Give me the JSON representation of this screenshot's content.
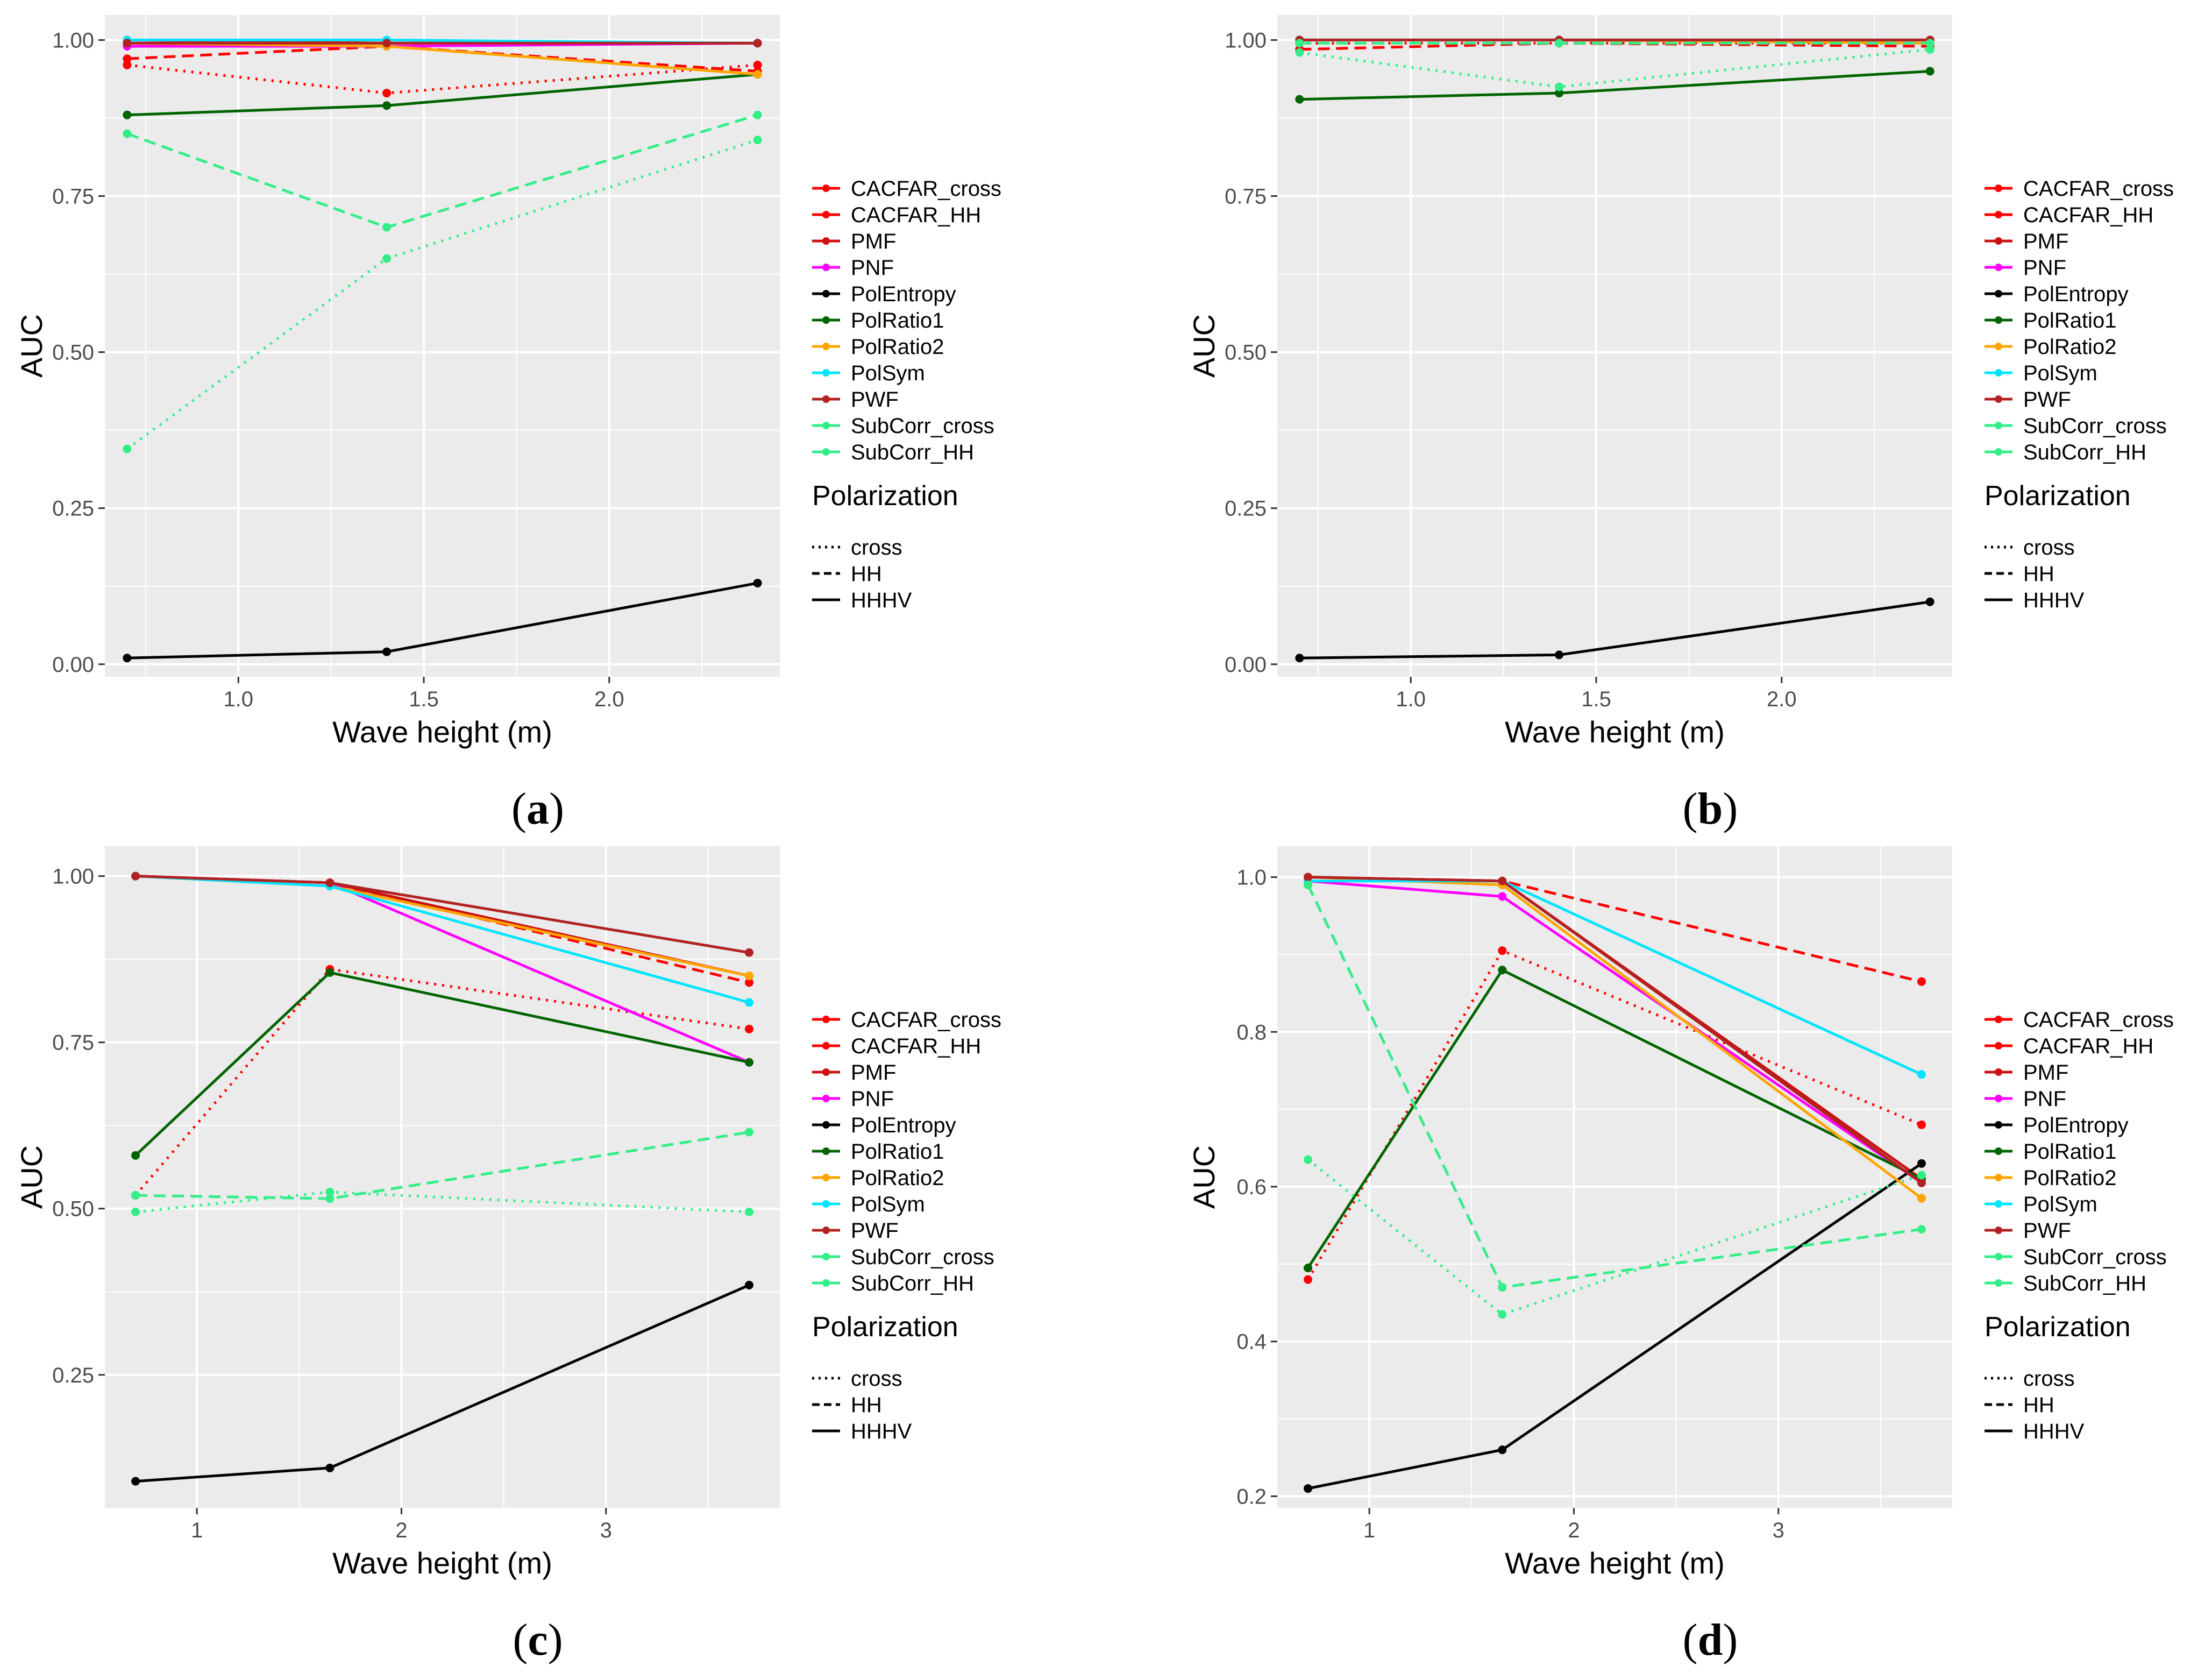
{
  "figure": {
    "legend_title": "Polarization",
    "line_types": [
      {
        "key": "cross",
        "label": "cross",
        "dash": "dotted"
      },
      {
        "key": "HH",
        "label": "HH",
        "dash": "dashed"
      },
      {
        "key": "HHHV",
        "label": "HHHV",
        "dash": "solid"
      }
    ],
    "colors": {
      "CACFAR_cross": "#ff0000",
      "CACFAR_HH": "#ff0000",
      "PMF": "#cc1111",
      "PNF": "#ff00ff",
      "PolEntropy": "#000000",
      "PolRatio1": "#006400",
      "PolRatio2": "#ffa500",
      "PolSym": "#00e5ff",
      "PWF": "#b22222",
      "SubCorr_cross": "#33ee88",
      "SubCorr_HH": "#33ee88",
      "panel_bg": "#ebebeb",
      "grid": "#ffffff"
    }
  },
  "chart_data": [
    {
      "type": "line",
      "panel": "a",
      "label_prefix": "(",
      "label_letter": "a",
      "label_suffix": ")",
      "xlabel": "Wave height (m)",
      "ylabel": "AUC",
      "xlim": [
        0.64,
        2.46
      ],
      "ylim": [
        -0.02,
        1.04
      ],
      "xticks": [
        {
          "v": 1.0,
          "t": "1.0"
        },
        {
          "v": 1.5,
          "t": "1.5"
        },
        {
          "v": 2.0,
          "t": "2.0"
        }
      ],
      "yticks": [
        {
          "v": 0.0,
          "t": "0.00"
        },
        {
          "v": 0.25,
          "t": "0.25"
        },
        {
          "v": 0.5,
          "t": "0.50"
        },
        {
          "v": 0.75,
          "t": "0.75"
        },
        {
          "v": 1.0,
          "t": "1.00"
        }
      ],
      "x": [
        0.7,
        1.4,
        2.4
      ],
      "series": [
        {
          "name": "CACFAR_cross",
          "dash": "cross",
          "values": [
            0.96,
            0.915,
            0.96
          ]
        },
        {
          "name": "CACFAR_HH",
          "dash": "HH",
          "values": [
            0.97,
            0.99,
            0.95
          ]
        },
        {
          "name": "PMF",
          "dash": "HHHV",
          "values": [
            1.0,
            0.995,
            0.995
          ]
        },
        {
          "name": "PNF",
          "dash": "HHHV",
          "values": [
            0.99,
            0.99,
            0.995
          ]
        },
        {
          "name": "PolEntropy",
          "dash": "HHHV",
          "values": [
            0.01,
            0.02,
            0.13
          ]
        },
        {
          "name": "PolRatio1",
          "dash": "HHHV",
          "values": [
            0.88,
            0.895,
            0.945
          ]
        },
        {
          "name": "PolRatio2",
          "dash": "HHHV",
          "values": [
            0.995,
            0.99,
            0.945
          ]
        },
        {
          "name": "PolSym",
          "dash": "HHHV",
          "values": [
            1.0,
            1.0,
            0.995
          ]
        },
        {
          "name": "PWF",
          "dash": "HHHV",
          "values": [
            0.995,
            0.995,
            0.995
          ]
        },
        {
          "name": "SubCorr_cross",
          "dash": "cross",
          "values": [
            0.345,
            0.65,
            0.84
          ]
        },
        {
          "name": "SubCorr_HH",
          "dash": "HH",
          "values": [
            0.85,
            0.7,
            0.88
          ]
        }
      ]
    },
    {
      "type": "line",
      "panel": "b",
      "label_prefix": "(",
      "label_letter": "b",
      "label_suffix": ")",
      "xlabel": "Wave height (m)",
      "ylabel": "AUC",
      "xlim": [
        0.64,
        2.46
      ],
      "ylim": [
        -0.02,
        1.04
      ],
      "xticks": [
        {
          "v": 1.0,
          "t": "1.0"
        },
        {
          "v": 1.5,
          "t": "1.5"
        },
        {
          "v": 2.0,
          "t": "2.0"
        }
      ],
      "yticks": [
        {
          "v": 0.0,
          "t": "0.00"
        },
        {
          "v": 0.25,
          "t": "0.25"
        },
        {
          "v": 0.5,
          "t": "0.50"
        },
        {
          "v": 0.75,
          "t": "0.75"
        },
        {
          "v": 1.0,
          "t": "1.00"
        }
      ],
      "x": [
        0.7,
        1.4,
        2.4
      ],
      "series": [
        {
          "name": "CACFAR_cross",
          "dash": "cross",
          "values": [
            0.995,
            0.995,
            0.995
          ]
        },
        {
          "name": "CACFAR_HH",
          "dash": "HH",
          "values": [
            0.985,
            0.995,
            0.99
          ]
        },
        {
          "name": "PMF",
          "dash": "HHHV",
          "values": [
            1.0,
            1.0,
            1.0
          ]
        },
        {
          "name": "PNF",
          "dash": "HHHV",
          "values": [
            1.0,
            1.0,
            1.0
          ]
        },
        {
          "name": "PolEntropy",
          "dash": "HHHV",
          "values": [
            0.01,
            0.015,
            0.1
          ]
        },
        {
          "name": "PolRatio1",
          "dash": "HHHV",
          "values": [
            0.905,
            0.915,
            0.95
          ]
        },
        {
          "name": "PolRatio2",
          "dash": "HHHV",
          "values": [
            1.0,
            1.0,
            0.995
          ]
        },
        {
          "name": "PolSym",
          "dash": "HHHV",
          "values": [
            1.0,
            1.0,
            1.0
          ]
        },
        {
          "name": "PWF",
          "dash": "HHHV",
          "values": [
            1.0,
            1.0,
            1.0
          ]
        },
        {
          "name": "SubCorr_cross",
          "dash": "cross",
          "values": [
            0.98,
            0.925,
            0.985
          ]
        },
        {
          "name": "SubCorr_HH",
          "dash": "HH",
          "values": [
            0.995,
            0.995,
            0.995
          ]
        }
      ]
    },
    {
      "type": "line",
      "panel": "c",
      "label_prefix": "(",
      "label_letter": "c",
      "label_suffix": ")",
      "xlabel": "Wave height (m)",
      "ylabel": "AUC",
      "xlim": [
        0.55,
        3.85
      ],
      "ylim": [
        0.05,
        1.045
      ],
      "xticks": [
        {
          "v": 1,
          "t": "1"
        },
        {
          "v": 2,
          "t": "2"
        },
        {
          "v": 3,
          "t": "3"
        }
      ],
      "yticks": [
        {
          "v": 0.25,
          "t": "0.25"
        },
        {
          "v": 0.5,
          "t": "0.50"
        },
        {
          "v": 0.75,
          "t": "0.75"
        },
        {
          "v": 1.0,
          "t": "1.00"
        }
      ],
      "x": [
        0.7,
        1.65,
        3.7
      ],
      "series": [
        {
          "name": "CACFAR_cross",
          "dash": "cross",
          "values": [
            0.52,
            0.86,
            0.77
          ]
        },
        {
          "name": "CACFAR_HH",
          "dash": "HH",
          "values": [
            1.0,
            0.99,
            0.84
          ]
        },
        {
          "name": "PMF",
          "dash": "HHHV",
          "values": [
            1.0,
            0.99,
            0.85
          ]
        },
        {
          "name": "PNF",
          "dash": "HHHV",
          "values": [
            1.0,
            0.99,
            0.72
          ]
        },
        {
          "name": "PolEntropy",
          "dash": "HHHV",
          "values": [
            0.09,
            0.11,
            0.385
          ]
        },
        {
          "name": "PolRatio1",
          "dash": "HHHV",
          "values": [
            0.58,
            0.855,
            0.72
          ]
        },
        {
          "name": "PolRatio2",
          "dash": "HHHV",
          "values": [
            1.0,
            0.985,
            0.85
          ]
        },
        {
          "name": "PolSym",
          "dash": "HHHV",
          "values": [
            1.0,
            0.985,
            0.81
          ]
        },
        {
          "name": "PWF",
          "dash": "HHHV",
          "values": [
            1.0,
            0.99,
            0.885
          ]
        },
        {
          "name": "SubCorr_cross",
          "dash": "cross",
          "values": [
            0.495,
            0.525,
            0.495
          ]
        },
        {
          "name": "SubCorr_HH",
          "dash": "HH",
          "values": [
            0.52,
            0.515,
            0.615
          ]
        }
      ]
    },
    {
      "type": "line",
      "panel": "d",
      "label_prefix": "(",
      "label_letter": "d",
      "label_suffix": ")",
      "xlabel": "Wave height (m)",
      "ylabel": "AUC",
      "xlim": [
        0.55,
        3.85
      ],
      "ylim": [
        0.185,
        1.04
      ],
      "xticks": [
        {
          "v": 1,
          "t": "1"
        },
        {
          "v": 2,
          "t": "2"
        },
        {
          "v": 3,
          "t": "3"
        }
      ],
      "yticks": [
        {
          "v": 0.2,
          "t": "0.2"
        },
        {
          "v": 0.4,
          "t": "0.4"
        },
        {
          "v": 0.6,
          "t": "0.6"
        },
        {
          "v": 0.8,
          "t": "0.8"
        },
        {
          "v": 1.0,
          "t": "1.0"
        }
      ],
      "x": [
        0.7,
        1.65,
        3.7
      ],
      "series": [
        {
          "name": "CACFAR_cross",
          "dash": "cross",
          "values": [
            0.48,
            0.905,
            0.68
          ]
        },
        {
          "name": "CACFAR_HH",
          "dash": "HH",
          "values": [
            1.0,
            0.995,
            0.865
          ]
        },
        {
          "name": "PMF",
          "dash": "HHHV",
          "values": [
            1.0,
            0.995,
            0.61
          ]
        },
        {
          "name": "PNF",
          "dash": "HHHV",
          "values": [
            0.995,
            0.975,
            0.605
          ]
        },
        {
          "name": "PolEntropy",
          "dash": "HHHV",
          "values": [
            0.21,
            0.26,
            0.63
          ]
        },
        {
          "name": "PolRatio1",
          "dash": "HHHV",
          "values": [
            0.495,
            0.88,
            0.61
          ]
        },
        {
          "name": "PolRatio2",
          "dash": "HHHV",
          "values": [
            1.0,
            0.99,
            0.585
          ]
        },
        {
          "name": "PolSym",
          "dash": "HHHV",
          "values": [
            0.995,
            0.995,
            0.745
          ]
        },
        {
          "name": "PWF",
          "dash": "HHHV",
          "values": [
            1.0,
            0.995,
            0.605
          ]
        },
        {
          "name": "SubCorr_cross",
          "dash": "cross",
          "values": [
            0.635,
            0.435,
            0.615
          ]
        },
        {
          "name": "SubCorr_HH",
          "dash": "HH",
          "values": [
            0.99,
            0.47,
            0.545
          ]
        }
      ]
    }
  ]
}
